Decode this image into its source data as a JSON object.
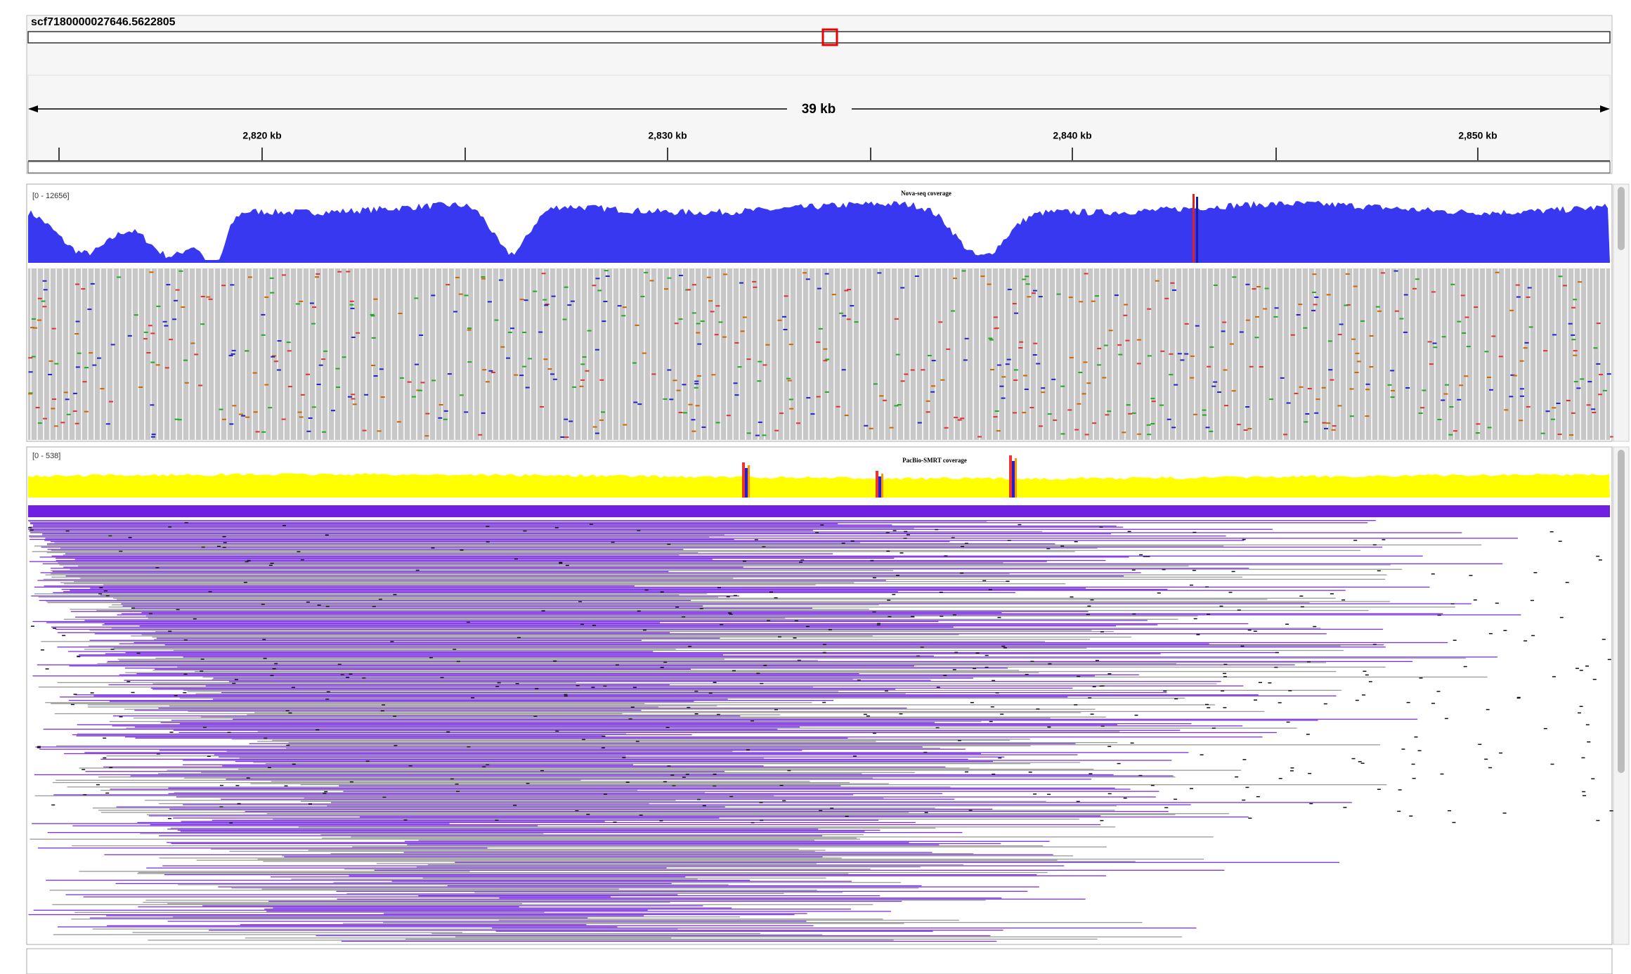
{
  "locus": {
    "name": "scf7180000027646.5622805"
  },
  "ruler": {
    "span": "39 kb",
    "ticks": [
      "2,820 kb",
      "2,830 kb",
      "2,840 kb",
      "2,850 kb"
    ]
  },
  "tracks": [
    {
      "range": "[0 - 12656]",
      "label": "Nova-seq coverage"
    },
    {
      "range": "[0 - 538]",
      "label": "PacBio-SMRT coverage"
    }
  ]
}
